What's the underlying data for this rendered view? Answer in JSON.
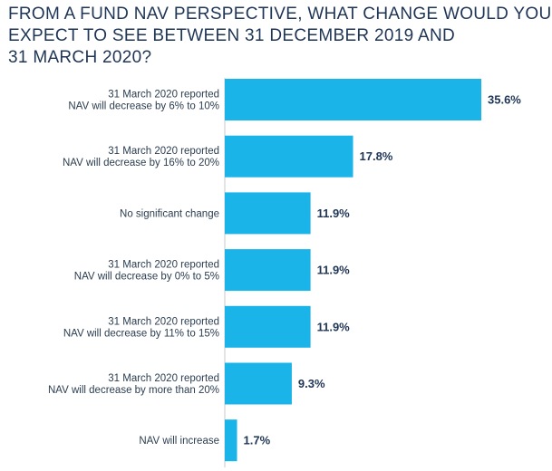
{
  "title_lines": [
    "FROM A FUND NAV PERSPECTIVE, WHAT CHANGE WOULD YOU",
    "EXPECT TO SEE BETWEEN 31 DECEMBER 2019 AND",
    "31 MARCH 2020?"
  ],
  "colors": {
    "bar": "#1ab4e8",
    "axis": "#c8c8c8",
    "value_text": "#1f3556"
  },
  "chart_data": {
    "type": "bar",
    "orientation": "horizontal",
    "title": "FROM A FUND NAV PERSPECTIVE, WHAT CHANGE WOULD YOU EXPECT TO SEE BETWEEN 31 DECEMBER 2019 AND 31 MARCH 2020?",
    "categories": [
      [
        "31 March 2020 reported",
        "NAV will decrease by 6% to 10%"
      ],
      [
        "31 March 2020 reported",
        "NAV will decrease by 16% to 20%"
      ],
      [
        "No significant change"
      ],
      [
        "31 March 2020 reported",
        "NAV will decrease by 0% to 5%"
      ],
      [
        "31 March 2020 reported",
        "NAV will decrease by 11% to 15%"
      ],
      [
        "31 March 2020 reported",
        "NAV will decrease by more than 20%"
      ],
      [
        "NAV will increase"
      ]
    ],
    "values": [
      35.6,
      17.8,
      11.9,
      11.9,
      11.9,
      9.3,
      1.7
    ],
    "value_labels": [
      "35.6%",
      "17.8%",
      "11.9%",
      "11.9%",
      "11.9%",
      "9.3%",
      "1.7%"
    ],
    "xlim": [
      0,
      35.6
    ],
    "grid": false,
    "legend": "none"
  }
}
